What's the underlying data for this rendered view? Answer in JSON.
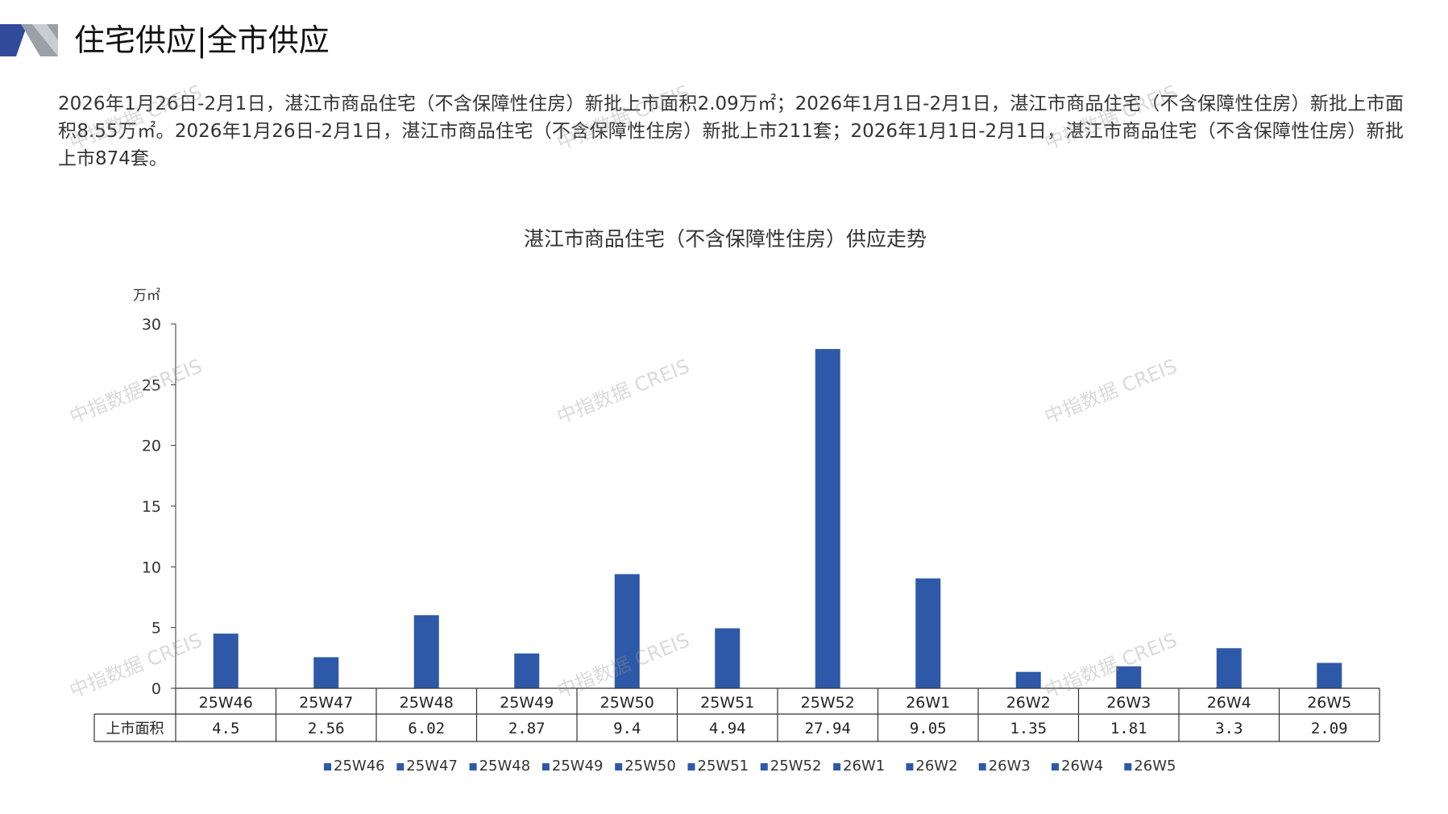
{
  "header": {
    "title": "住宅供应|全市供应"
  },
  "summary_text": "2026年1月26日-2月1日，湛江市商品住宅（不含保障性住房）新批上市面积2.09万㎡；2026年1月1日-2月1日，湛江市商品住宅（不含保障性住房）新批上市面积8.55万㎡。2026年1月26日-2月1日，湛江市商品住宅（不含保障性住房）新批上市211套；2026年1月1日-2月1日，湛江市商品住宅（不含保障性住房）新批上市874套。",
  "watermark_text": "中指数据 CREIS",
  "colors": {
    "bar": "#2e59a8",
    "axis": "#333333",
    "header_navy": "#2f4b9a",
    "header_gray": "#9aa0a8"
  },
  "chart_data": {
    "type": "bar",
    "title": "湛江市商品住宅（不含保障性住房）供应走势",
    "ylabel": "万㎡",
    "xlabel": "",
    "ylim": [
      0,
      30
    ],
    "yticks": [
      0,
      5,
      10,
      15,
      20,
      25,
      30
    ],
    "categories": [
      "25W46",
      "25W47",
      "25W48",
      "25W49",
      "25W50",
      "25W51",
      "25W52",
      "26W1",
      "26W2",
      "26W3",
      "26W4",
      "26W5"
    ],
    "series": [
      {
        "name": "上市面积",
        "values": [
          4.5,
          2.56,
          6.02,
          2.87,
          9.4,
          4.94,
          27.94,
          9.05,
          1.35,
          1.81,
          3.3,
          2.09
        ],
        "labels": [
          "4.5",
          "2.56",
          "6.02",
          "2.87",
          "9.4",
          "4.94",
          "27.94",
          "9.05",
          "1.35",
          "1.81",
          "3.3",
          "2.09"
        ]
      }
    ],
    "data_table": true,
    "grid": false,
    "legend": {
      "position": "bottom",
      "entries": [
        "25W46",
        "25W47",
        "25W48",
        "25W49",
        "25W50",
        "25W51",
        "25W52",
        "26W1",
        "26W2",
        "26W3",
        "26W4",
        "26W5"
      ]
    }
  }
}
